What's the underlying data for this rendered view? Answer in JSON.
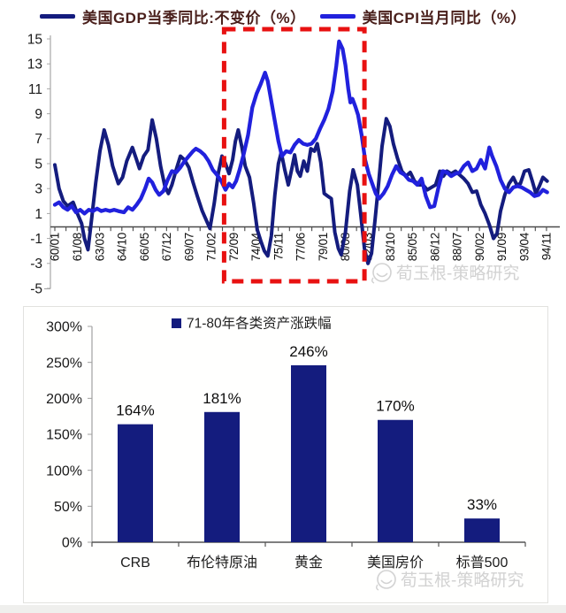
{
  "watermark": {
    "text": "荀玉根-策略研究",
    "color": "#d2d2d2"
  },
  "colors": {
    "gdp_line": "#141c7e",
    "cpi_line": "#2121dd",
    "highlight_box": "#e81111",
    "bar": "#141c7e",
    "legend_text": "#4a201c"
  },
  "chart_data": [
    {
      "type": "line",
      "title": "",
      "ylim": [
        -5,
        15
      ],
      "y_ticks": [
        15,
        13,
        11,
        9,
        7,
        5,
        3,
        1,
        -1,
        -3,
        -5
      ],
      "x_tick_labels": [
        "60/01",
        "61/08",
        "63/03",
        "64/10",
        "66/05",
        "67/12",
        "69/07",
        "71/02",
        "72/09",
        "74/04",
        "75/11",
        "77/06",
        "79/01",
        "80/08",
        "82/03",
        "83/10",
        "85/05",
        "86/12",
        "88/07",
        "90/02",
        "91/09",
        "93/04",
        "94/11"
      ],
      "legend_position": "top-center",
      "grid": false,
      "highlight": {
        "label_range": [
          "72/09",
          "82/03"
        ],
        "x_start_year": 1972.0,
        "x_end_year": 1981.95,
        "color": "#e81111",
        "style": "dashed-box"
      },
      "series": [
        {
          "name": "美国GDP当季同比:不变价（%）",
          "color": "#141c7e",
          "points": [
            [
              1960.0,
              4.9
            ],
            [
              1960.3,
              3.0
            ],
            [
              1960.6,
              2.0
            ],
            [
              1960.9,
              1.6
            ],
            [
              1961.3,
              1.9
            ],
            [
              1961.6,
              1.0
            ],
            [
              1961.9,
              0.2
            ],
            [
              1962.1,
              -1.0
            ],
            [
              1962.35,
              -1.9
            ],
            [
              1962.6,
              0.5
            ],
            [
              1962.9,
              3.5
            ],
            [
              1963.2,
              6.0
            ],
            [
              1963.5,
              7.7
            ],
            [
              1963.8,
              6.5
            ],
            [
              1964.1,
              4.8
            ],
            [
              1964.5,
              3.4
            ],
            [
              1964.8,
              3.9
            ],
            [
              1965.1,
              5.2
            ],
            [
              1965.5,
              6.3
            ],
            [
              1965.8,
              5.3
            ],
            [
              1966.0,
              4.6
            ],
            [
              1966.3,
              5.6
            ],
            [
              1966.6,
              6.1
            ],
            [
              1966.9,
              8.5
            ],
            [
              1967.2,
              7.0
            ],
            [
              1967.5,
              4.8
            ],
            [
              1967.8,
              3.2
            ],
            [
              1968.05,
              2.6
            ],
            [
              1968.3,
              3.3
            ],
            [
              1968.6,
              4.5
            ],
            [
              1968.9,
              5.6
            ],
            [
              1969.2,
              5.3
            ],
            [
              1969.5,
              4.7
            ],
            [
              1969.8,
              3.5
            ],
            [
              1970.1,
              2.4
            ],
            [
              1970.45,
              1.2
            ],
            [
              1970.8,
              0.3
            ],
            [
              1971.0,
              -0.2
            ],
            [
              1971.3,
              1.8
            ],
            [
              1971.6,
              4.3
            ],
            [
              1971.85,
              5.6
            ],
            [
              1972.1,
              5.0
            ],
            [
              1972.35,
              4.2
            ],
            [
              1972.6,
              5.3
            ],
            [
              1972.8,
              6.8
            ],
            [
              1973.0,
              7.7
            ],
            [
              1973.25,
              6.4
            ],
            [
              1973.5,
              4.8
            ],
            [
              1973.8,
              3.9
            ],
            [
              1974.1,
              1.8
            ],
            [
              1974.35,
              -0.3
            ],
            [
              1974.6,
              -1.2
            ],
            [
              1974.85,
              -2.0
            ],
            [
              1975.1,
              -2.4
            ],
            [
              1975.35,
              -0.8
            ],
            [
              1975.6,
              2.5
            ],
            [
              1975.85,
              5.0
            ],
            [
              1976.05,
              5.9
            ],
            [
              1976.3,
              4.5
            ],
            [
              1976.55,
              3.3
            ],
            [
              1976.8,
              4.6
            ],
            [
              1977.0,
              5.7
            ],
            [
              1977.2,
              4.4
            ],
            [
              1977.4,
              4.0
            ],
            [
              1977.65,
              5.2
            ],
            [
              1977.9,
              4.4
            ],
            [
              1978.15,
              6.2
            ],
            [
              1978.4,
              6.0
            ],
            [
              1978.6,
              6.6
            ],
            [
              1978.85,
              5.1
            ],
            [
              1979.1,
              2.6
            ],
            [
              1979.35,
              2.4
            ],
            [
              1979.6,
              2.2
            ],
            [
              1979.85,
              -0.5
            ],
            [
              1980.1,
              -1.8
            ],
            [
              1980.3,
              -2.3
            ],
            [
              1980.6,
              -0.5
            ],
            [
              1980.9,
              2.8
            ],
            [
              1981.15,
              4.5
            ],
            [
              1981.45,
              3.3
            ],
            [
              1981.7,
              0.8
            ],
            [
              1981.95,
              -1.8
            ],
            [
              1982.2,
              -3.0
            ],
            [
              1982.45,
              -2.2
            ],
            [
              1982.7,
              0.5
            ],
            [
              1982.95,
              3.4
            ],
            [
              1983.2,
              6.4
            ],
            [
              1983.5,
              8.6
            ],
            [
              1983.75,
              8.0
            ],
            [
              1984.0,
              6.6
            ],
            [
              1984.3,
              5.4
            ],
            [
              1984.6,
              4.4
            ],
            [
              1984.9,
              4.0
            ],
            [
              1985.2,
              4.3
            ],
            [
              1985.5,
              3.6
            ],
            [
              1985.8,
              3.3
            ],
            [
              1986.1,
              3.3
            ],
            [
              1986.4,
              2.9
            ],
            [
              1986.7,
              3.1
            ],
            [
              1987.0,
              3.3
            ],
            [
              1987.3,
              4.4
            ],
            [
              1987.55,
              4.0
            ],
            [
              1987.8,
              4.4
            ],
            [
              1988.1,
              4.2
            ],
            [
              1988.4,
              4.4
            ],
            [
              1988.7,
              4.1
            ],
            [
              1989.0,
              3.8
            ],
            [
              1989.3,
              3.4
            ],
            [
              1989.6,
              2.7
            ],
            [
              1989.9,
              2.8
            ],
            [
              1990.2,
              1.7
            ],
            [
              1990.5,
              1.0
            ],
            [
              1990.8,
              0.1
            ],
            [
              1991.1,
              -1.0
            ],
            [
              1991.35,
              -0.6
            ],
            [
              1991.6,
              1.2
            ],
            [
              1991.9,
              2.5
            ],
            [
              1992.2,
              3.4
            ],
            [
              1992.5,
              3.9
            ],
            [
              1992.75,
              3.3
            ],
            [
              1993.0,
              3.4
            ],
            [
              1993.3,
              4.4
            ],
            [
              1993.6,
              4.5
            ],
            [
              1993.85,
              3.6
            ],
            [
              1994.1,
              2.6
            ],
            [
              1994.35,
              3.2
            ],
            [
              1994.6,
              3.9
            ],
            [
              1994.9,
              3.6
            ]
          ]
        },
        {
          "name": "美国CPI当月同比（%）",
          "color": "#2121dd",
          "points": [
            [
              1960.0,
              1.7
            ],
            [
              1960.3,
              1.9
            ],
            [
              1960.6,
              1.5
            ],
            [
              1960.9,
              1.3
            ],
            [
              1961.2,
              1.6
            ],
            [
              1961.5,
              1.1
            ],
            [
              1961.8,
              1.3
            ],
            [
              1962.1,
              1.0
            ],
            [
              1962.4,
              1.3
            ],
            [
              1962.7,
              1.2
            ],
            [
              1963.0,
              1.4
            ],
            [
              1963.3,
              1.2
            ],
            [
              1963.6,
              1.3
            ],
            [
              1963.9,
              1.2
            ],
            [
              1964.2,
              1.3
            ],
            [
              1964.5,
              1.2
            ],
            [
              1964.9,
              1.1
            ],
            [
              1965.2,
              1.5
            ],
            [
              1965.5,
              1.3
            ],
            [
              1965.8,
              1.7
            ],
            [
              1966.1,
              2.2
            ],
            [
              1966.4,
              3.0
            ],
            [
              1966.65,
              3.8
            ],
            [
              1966.9,
              3.5
            ],
            [
              1967.15,
              2.9
            ],
            [
              1967.4,
              2.5
            ],
            [
              1967.7,
              2.8
            ],
            [
              1968.0,
              3.7
            ],
            [
              1968.3,
              4.4
            ],
            [
              1968.6,
              4.3
            ],
            [
              1968.9,
              4.7
            ],
            [
              1969.2,
              5.2
            ],
            [
              1969.5,
              5.6
            ],
            [
              1969.8,
              6.0
            ],
            [
              1970.0,
              6.2
            ],
            [
              1970.3,
              6.0
            ],
            [
              1970.6,
              5.7
            ],
            [
              1970.9,
              5.2
            ],
            [
              1971.2,
              4.5
            ],
            [
              1971.5,
              4.1
            ],
            [
              1971.8,
              3.6
            ],
            [
              1972.1,
              2.9
            ],
            [
              1972.35,
              3.4
            ],
            [
              1972.6,
              3.1
            ],
            [
              1972.85,
              3.6
            ],
            [
              1973.1,
              4.5
            ],
            [
              1973.4,
              5.8
            ],
            [
              1973.7,
              7.3
            ],
            [
              1974.0,
              9.5
            ],
            [
              1974.3,
              10.6
            ],
            [
              1974.6,
              11.4
            ],
            [
              1974.9,
              12.3
            ],
            [
              1975.1,
              11.6
            ],
            [
              1975.35,
              10.0
            ],
            [
              1975.6,
              8.4
            ],
            [
              1975.85,
              6.8
            ],
            [
              1976.1,
              5.6
            ],
            [
              1976.4,
              6.0
            ],
            [
              1976.7,
              5.9
            ],
            [
              1977.0,
              6.5
            ],
            [
              1977.3,
              6.9
            ],
            [
              1977.6,
              6.6
            ],
            [
              1977.9,
              6.5
            ],
            [
              1978.2,
              6.6
            ],
            [
              1978.5,
              7.0
            ],
            [
              1978.8,
              7.8
            ],
            [
              1979.1,
              8.5
            ],
            [
              1979.4,
              9.4
            ],
            [
              1979.7,
              10.8
            ],
            [
              1979.95,
              12.8
            ],
            [
              1980.15,
              14.8
            ],
            [
              1980.4,
              14.2
            ],
            [
              1980.6,
              12.9
            ],
            [
              1980.8,
              11.0
            ],
            [
              1980.95,
              9.9
            ],
            [
              1981.1,
              10.2
            ],
            [
              1981.3,
              9.6
            ],
            [
              1981.5,
              8.9
            ],
            [
              1981.75,
              7.3
            ],
            [
              1982.0,
              5.3
            ],
            [
              1982.25,
              4.2
            ],
            [
              1982.5,
              3.4
            ],
            [
              1982.75,
              2.6
            ],
            [
              1983.0,
              2.2
            ],
            [
              1983.3,
              2.6
            ],
            [
              1983.6,
              3.2
            ],
            [
              1983.9,
              4.1
            ],
            [
              1984.2,
              4.8
            ],
            [
              1984.5,
              4.3
            ],
            [
              1984.8,
              4.1
            ],
            [
              1985.1,
              3.7
            ],
            [
              1985.4,
              3.6
            ],
            [
              1985.7,
              3.3
            ],
            [
              1986.0,
              3.8
            ],
            [
              1986.3,
              2.4
            ],
            [
              1986.6,
              1.5
            ],
            [
              1986.9,
              1.6
            ],
            [
              1987.2,
              3.1
            ],
            [
              1987.5,
              4.4
            ],
            [
              1987.8,
              4.3
            ],
            [
              1988.1,
              4.0
            ],
            [
              1988.4,
              4.2
            ],
            [
              1988.7,
              4.3
            ],
            [
              1989.0,
              4.8
            ],
            [
              1989.3,
              5.1
            ],
            [
              1989.6,
              4.4
            ],
            [
              1989.9,
              4.6
            ],
            [
              1990.2,
              5.3
            ],
            [
              1990.5,
              4.6
            ],
            [
              1990.8,
              6.3
            ],
            [
              1991.0,
              5.6
            ],
            [
              1991.3,
              4.8
            ],
            [
              1991.6,
              3.7
            ],
            [
              1991.9,
              3.0
            ],
            [
              1992.2,
              2.7
            ],
            [
              1992.5,
              3.1
            ],
            [
              1992.8,
              3.2
            ],
            [
              1993.1,
              3.1
            ],
            [
              1993.4,
              2.9
            ],
            [
              1993.7,
              2.7
            ],
            [
              1994.0,
              2.4
            ],
            [
              1994.3,
              2.5
            ],
            [
              1994.6,
              2.9
            ],
            [
              1994.9,
              2.7
            ]
          ]
        }
      ]
    },
    {
      "type": "bar",
      "title": "71-80年各类资产涨跌幅",
      "categories": [
        "CRB",
        "布伦特原油",
        "黄金",
        "美国房价",
        "标普500"
      ],
      "values": [
        164,
        181,
        246,
        170,
        33
      ],
      "value_labels": [
        "164%",
        "181%",
        "246%",
        "170%",
        "33%"
      ],
      "unit": "%",
      "bar_color": "#141c7e",
      "y_ticks": [
        "300%",
        "250%",
        "200%",
        "150%",
        "100%",
        "50%",
        "0%"
      ],
      "ylim": [
        0,
        300
      ],
      "grid": false,
      "legend_position": "top-center"
    }
  ]
}
